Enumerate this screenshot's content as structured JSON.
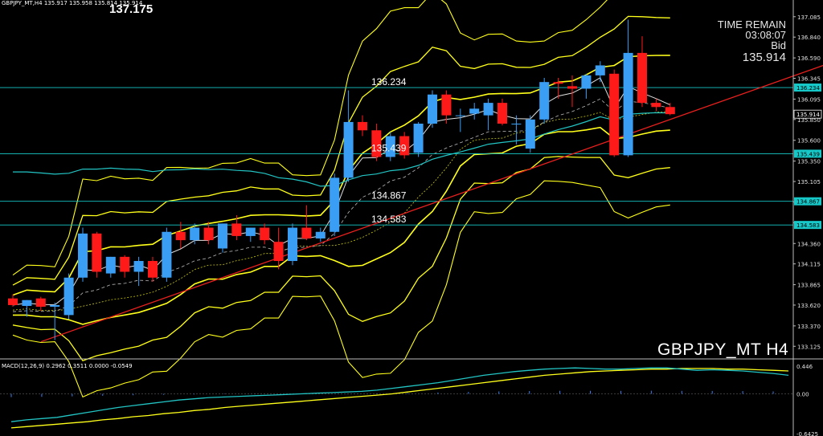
{
  "header": {
    "ohlc_text": "GBPJPY_MT,H4  135.917 135.958 135.814 135.914",
    "big_price": "137.175"
  },
  "info_panel": {
    "time_remain_label": "TIME REMAIN",
    "time_remain_value": "03:08:07",
    "bid_label": "Bid",
    "bid_value": "135.914"
  },
  "symbol_label": "GBPJPY_MT H4",
  "colors": {
    "background": "#000000",
    "bull_candle": "#3a9ef5",
    "bear_candle": "#ff1a1a",
    "bollinger": "#ffff1a",
    "level_line": "#17c8c8",
    "trend_line": "#e8201e",
    "ma_white": "#e0e0e0",
    "ma_cyan": "#22c4c4",
    "macd_line": "#22c4c4",
    "signal_line": "#ffff1a",
    "hist": "#3a7ff0"
  },
  "chart_data": {
    "type": "candlestick",
    "price_axis": {
      "ticks": [
        "137.085",
        "136.840",
        "136.590",
        "136.345",
        "136.095",
        "135.850",
        "135.600",
        "135.350",
        "135.105",
        "134.860",
        "134.610",
        "134.360",
        "134.115",
        "133.865",
        "133.620",
        "133.370",
        "133.125"
      ],
      "range": [
        133.06,
        137.17
      ]
    },
    "price_tags": [
      {
        "value": "136.234",
        "type": "level"
      },
      {
        "value": "135.914",
        "type": "bid"
      },
      {
        "value": "135.439",
        "type": "level"
      },
      {
        "value": "134.867",
        "type": "level"
      },
      {
        "value": "134.583",
        "type": "level"
      }
    ],
    "levels": [
      {
        "value": 136.234,
        "label": "136.234"
      },
      {
        "value": 135.439,
        "label": "135.439"
      },
      {
        "value": 134.867,
        "label": "134.867"
      },
      {
        "value": 134.583,
        "label": "134.583"
      }
    ],
    "candles": [
      {
        "o": 133.7,
        "h": 133.75,
        "l": 133.6,
        "c": 133.62
      },
      {
        "o": 133.61,
        "h": 133.68,
        "l": 133.48,
        "c": 133.68
      },
      {
        "o": 133.7,
        "h": 133.72,
        "l": 133.55,
        "c": 133.6
      },
      {
        "o": 133.6,
        "h": 133.65,
        "l": 133.2,
        "c": 133.62
      },
      {
        "o": 133.5,
        "h": 134.0,
        "l": 133.45,
        "c": 133.95
      },
      {
        "o": 133.95,
        "h": 134.55,
        "l": 133.9,
        "c": 134.48
      },
      {
        "o": 134.48,
        "h": 134.5,
        "l": 133.95,
        "c": 134.02
      },
      {
        "o": 134.0,
        "h": 134.2,
        "l": 133.95,
        "c": 134.2
      },
      {
        "o": 134.2,
        "h": 134.22,
        "l": 133.95,
        "c": 134.02
      },
      {
        "o": 134.02,
        "h": 134.2,
        "l": 133.85,
        "c": 134.15
      },
      {
        "o": 134.15,
        "h": 134.2,
        "l": 133.9,
        "c": 133.95
      },
      {
        "o": 133.95,
        "h": 134.55,
        "l": 133.9,
        "c": 134.5
      },
      {
        "o": 134.5,
        "h": 134.62,
        "l": 134.3,
        "c": 134.4
      },
      {
        "o": 134.4,
        "h": 134.6,
        "l": 134.35,
        "c": 134.55
      },
      {
        "o": 134.55,
        "h": 134.62,
        "l": 134.35,
        "c": 134.4
      },
      {
        "o": 134.3,
        "h": 134.6,
        "l": 134.25,
        "c": 134.6
      },
      {
        "o": 134.6,
        "h": 134.7,
        "l": 134.4,
        "c": 134.45
      },
      {
        "o": 134.45,
        "h": 134.55,
        "l": 134.38,
        "c": 134.55
      },
      {
        "o": 134.55,
        "h": 134.6,
        "l": 134.35,
        "c": 134.4
      },
      {
        "o": 134.38,
        "h": 134.55,
        "l": 134.05,
        "c": 134.15
      },
      {
        "o": 134.15,
        "h": 134.6,
        "l": 134.1,
        "c": 134.55
      },
      {
        "o": 134.55,
        "h": 134.82,
        "l": 134.4,
        "c": 134.42
      },
      {
        "o": 134.42,
        "h": 134.55,
        "l": 134.38,
        "c": 134.5
      },
      {
        "o": 134.5,
        "h": 135.2,
        "l": 134.45,
        "c": 135.15
      },
      {
        "o": 135.15,
        "h": 136.2,
        "l": 135.1,
        "c": 135.82
      },
      {
        "o": 135.82,
        "h": 135.9,
        "l": 135.65,
        "c": 135.72
      },
      {
        "o": 135.72,
        "h": 135.8,
        "l": 135.35,
        "c": 135.4
      },
      {
        "o": 135.4,
        "h": 135.7,
        "l": 135.35,
        "c": 135.65
      },
      {
        "o": 135.65,
        "h": 135.7,
        "l": 135.38,
        "c": 135.42
      },
      {
        "o": 135.45,
        "h": 135.82,
        "l": 135.4,
        "c": 135.8
      },
      {
        "o": 135.8,
        "h": 136.2,
        "l": 135.75,
        "c": 136.15
      },
      {
        "o": 136.15,
        "h": 136.2,
        "l": 135.8,
        "c": 135.9
      },
      {
        "o": 135.9,
        "h": 135.98,
        "l": 135.7,
        "c": 135.9
      },
      {
        "o": 135.92,
        "h": 136.05,
        "l": 135.85,
        "c": 135.98
      },
      {
        "o": 135.9,
        "h": 136.1,
        "l": 135.72,
        "c": 136.05
      },
      {
        "o": 136.05,
        "h": 136.1,
        "l": 135.78,
        "c": 135.8
      },
      {
        "o": 135.8,
        "h": 135.9,
        "l": 135.55,
        "c": 135.8
      },
      {
        "o": 135.5,
        "h": 135.9,
        "l": 135.45,
        "c": 135.85
      },
      {
        "o": 135.85,
        "h": 136.35,
        "l": 135.8,
        "c": 136.3
      },
      {
        "o": 136.3,
        "h": 136.35,
        "l": 136.1,
        "c": 136.28
      },
      {
        "o": 136.25,
        "h": 136.38,
        "l": 136.0,
        "c": 136.22
      },
      {
        "o": 136.22,
        "h": 136.4,
        "l": 136.1,
        "c": 136.38
      },
      {
        "o": 136.38,
        "h": 136.55,
        "l": 136.3,
        "c": 136.5
      },
      {
        "o": 136.4,
        "h": 136.45,
        "l": 135.4,
        "c": 135.42
      },
      {
        "o": 135.42,
        "h": 137.05,
        "l": 135.4,
        "c": 136.65
      },
      {
        "o": 136.65,
        "h": 136.85,
        "l": 136.0,
        "c": 136.05
      },
      {
        "o": 136.05,
        "h": 136.1,
        "l": 135.95,
        "c": 136.0
      },
      {
        "o": 136.0,
        "h": 136.05,
        "l": 135.9,
        "c": 135.914
      }
    ],
    "trendline": {
      "from": [
        0,
        133.18
      ],
      "to": [
        57,
        136.58
      ]
    },
    "macd": {
      "label": "MACD(12,26,9) 0.2962 0.3511 0.0000 -0.0549",
      "ticks": [
        "0.446",
        "0.00",
        "-0.6425"
      ],
      "range": [
        -0.6425,
        0.5
      ],
      "macd_line": [
        -0.45,
        -0.42,
        -0.4,
        -0.38,
        -0.34,
        -0.3,
        -0.26,
        -0.22,
        -0.19,
        -0.16,
        -0.13,
        -0.1,
        -0.08,
        -0.06,
        -0.05,
        -0.04,
        -0.03,
        -0.02,
        -0.01,
        0.0,
        0.01,
        0.02,
        0.03,
        0.04,
        0.06,
        0.09,
        0.12,
        0.15,
        0.18,
        0.22,
        0.26,
        0.3,
        0.33,
        0.36,
        0.38,
        0.4,
        0.41,
        0.42,
        0.41,
        0.4,
        0.4,
        0.41,
        0.42,
        0.42,
        0.4,
        0.38,
        0.39,
        0.38,
        0.37,
        0.35,
        0.33,
        0.3
      ],
      "signal_line": [
        -0.55,
        -0.53,
        -0.51,
        -0.49,
        -0.47,
        -0.45,
        -0.42,
        -0.4,
        -0.37,
        -0.35,
        -0.32,
        -0.3,
        -0.27,
        -0.25,
        -0.22,
        -0.2,
        -0.18,
        -0.16,
        -0.14,
        -0.12,
        -0.1,
        -0.08,
        -0.06,
        -0.04,
        -0.02,
        0.0,
        0.03,
        0.06,
        0.09,
        0.12,
        0.15,
        0.18,
        0.21,
        0.24,
        0.27,
        0.3,
        0.32,
        0.34,
        0.36,
        0.37,
        0.38,
        0.39,
        0.4,
        0.4,
        0.41,
        0.41,
        0.41,
        0.4,
        0.4,
        0.39,
        0.38,
        0.37
      ]
    }
  }
}
